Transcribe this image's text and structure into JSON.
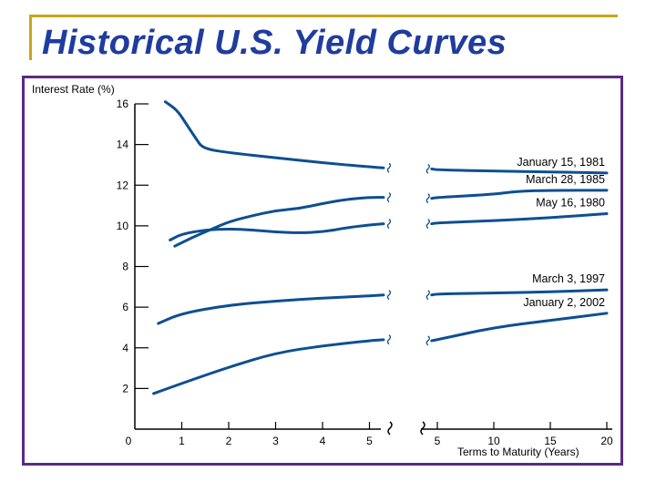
{
  "page": {
    "title": "Historical U.S. Yield Curves"
  },
  "colors": {
    "title": "#1f3c9e",
    "accent_line": "#c9a61a",
    "frame": "#5b2b82",
    "series": "#0d4f91"
  },
  "chart_data": {
    "type": "line",
    "title": "Historical U.S. Yield Curves",
    "ylabel": "Interest Rate (%)",
    "xlabel": "Terms to Maturity (Years)",
    "ylim": [
      0,
      16
    ],
    "yticks": [
      2,
      4,
      6,
      8,
      10,
      12,
      14,
      16
    ],
    "xticks_left": [
      "0",
      "1",
      "2",
      "3",
      "4",
      "5"
    ],
    "xticks_right": [
      "5",
      "10",
      "15",
      "20"
    ],
    "x_axis_break": true,
    "series": [
      {
        "name": "January 15, 1981",
        "left": [
          [
            0.65,
            16.1
          ],
          [
            0.9,
            15.7
          ],
          [
            1.1,
            15.0
          ],
          [
            1.3,
            14.3
          ],
          [
            1.45,
            13.8
          ],
          [
            2,
            13.6
          ],
          [
            3,
            13.35
          ],
          [
            4,
            13.1
          ],
          [
            5,
            12.9
          ],
          [
            5.3,
            12.85
          ]
        ],
        "right": [
          [
            4.5,
            12.8
          ],
          [
            5,
            12.75
          ],
          [
            10,
            12.7
          ],
          [
            15,
            12.65
          ],
          [
            20,
            12.6
          ]
        ]
      },
      {
        "name": "March 28, 1985",
        "left": [
          [
            0.85,
            9.0
          ],
          [
            1.2,
            9.4
          ],
          [
            1.6,
            9.8
          ],
          [
            2,
            10.2
          ],
          [
            2.5,
            10.5
          ],
          [
            3,
            10.75
          ],
          [
            3.5,
            10.85
          ],
          [
            4,
            11.1
          ],
          [
            4.5,
            11.3
          ],
          [
            5,
            11.4
          ],
          [
            5.3,
            11.4
          ]
        ],
        "right": [
          [
            4.5,
            11.35
          ],
          [
            5,
            11.4
          ],
          [
            10,
            11.55
          ],
          [
            12,
            11.7
          ],
          [
            15,
            11.75
          ],
          [
            20,
            11.75
          ]
        ]
      },
      {
        "name": "May 16, 1980",
        "left": [
          [
            0.75,
            9.3
          ],
          [
            1,
            9.6
          ],
          [
            1.5,
            9.8
          ],
          [
            2,
            9.85
          ],
          [
            2.5,
            9.8
          ],
          [
            3,
            9.7
          ],
          [
            3.5,
            9.65
          ],
          [
            4,
            9.7
          ],
          [
            4.5,
            9.9
          ],
          [
            5,
            10.05
          ],
          [
            5.3,
            10.1
          ]
        ],
        "right": [
          [
            4.5,
            10.1
          ],
          [
            5,
            10.15
          ],
          [
            10,
            10.25
          ],
          [
            15,
            10.4
          ],
          [
            20,
            10.6
          ]
        ]
      },
      {
        "name": "March 3, 1997",
        "left": [
          [
            0.5,
            5.2
          ],
          [
            1,
            5.7
          ],
          [
            2,
            6.1
          ],
          [
            3,
            6.3
          ],
          [
            4,
            6.45
          ],
          [
            5,
            6.55
          ],
          [
            5.3,
            6.6
          ]
        ],
        "right": [
          [
            4.5,
            6.6
          ],
          [
            5,
            6.65
          ],
          [
            10,
            6.7
          ],
          [
            15,
            6.75
          ],
          [
            20,
            6.85
          ]
        ]
      },
      {
        "name": "January 2, 2002",
        "left": [
          [
            0.4,
            1.75
          ],
          [
            1,
            2.25
          ],
          [
            2,
            3.05
          ],
          [
            3,
            3.75
          ],
          [
            4,
            4.1
          ],
          [
            5,
            4.35
          ],
          [
            5.3,
            4.4
          ]
        ],
        "right": [
          [
            4.5,
            4.35
          ],
          [
            5,
            4.4
          ],
          [
            10,
            5.0
          ],
          [
            15,
            5.35
          ],
          [
            20,
            5.7
          ]
        ]
      }
    ]
  }
}
